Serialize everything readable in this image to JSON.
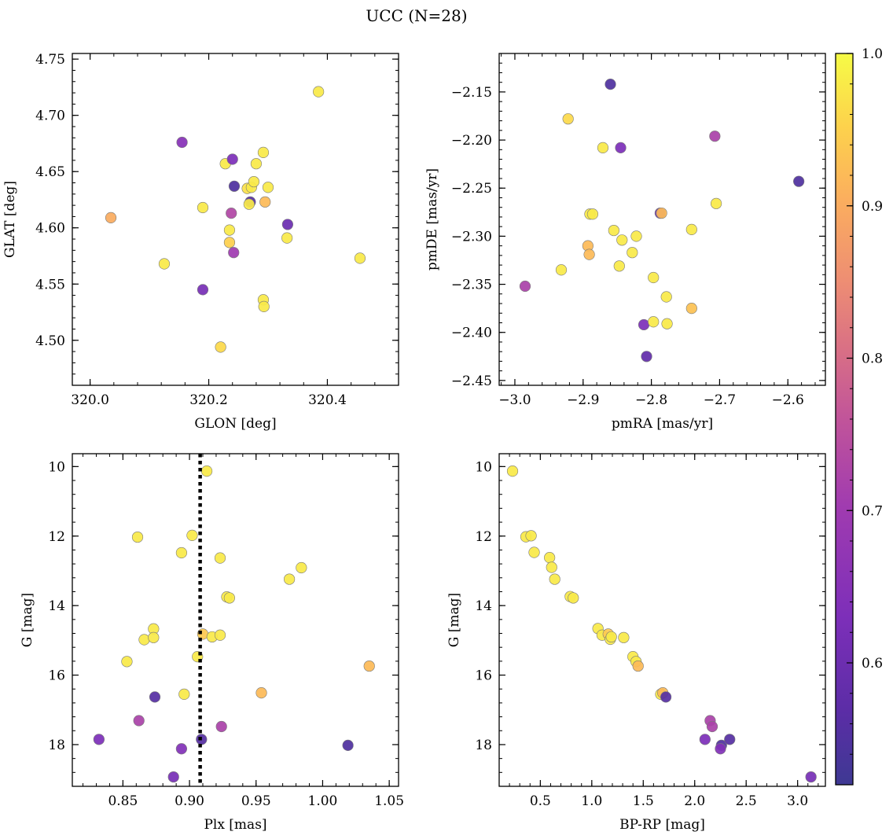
{
  "figure": {
    "title": "UCC (N=28)"
  },
  "colorbar": {
    "cmap": "plasma",
    "range": [
      0.52,
      1.0
    ],
    "ticks": [
      0.6,
      0.7,
      0.8,
      0.9,
      1.0
    ],
    "tick_labels": [
      "0.6",
      "0.7",
      "0.8",
      "0.9",
      "1.0"
    ]
  },
  "chart_data": [
    {
      "type": "scatter",
      "id": "glon-glat",
      "xlabel": "GLON [deg]",
      "ylabel": "GLAT [deg]",
      "xlim": [
        319.97,
        320.52
      ],
      "ylim": [
        4.46,
        4.755
      ],
      "xticks": [
        320.0,
        320.2,
        320.4
      ],
      "xtick_labels": [
        "320.0",
        "320.2",
        "320.4"
      ],
      "yticks": [
        4.5,
        4.55,
        4.6,
        4.65,
        4.7,
        4.75
      ],
      "ytick_labels": [
        "4.50",
        "4.55",
        "4.60",
        "4.65",
        "4.70",
        "4.75"
      ],
      "points": [
        {
          "x": 320.035,
          "y": 4.609,
          "c": 0.9
        },
        {
          "x": 320.125,
          "y": 4.568,
          "c": 0.98
        },
        {
          "x": 320.155,
          "y": 4.676,
          "c": 0.65
        },
        {
          "x": 320.19,
          "y": 4.545,
          "c": 0.62
        },
        {
          "x": 320.19,
          "y": 4.618,
          "c": 0.98
        },
        {
          "x": 320.22,
          "y": 4.494,
          "c": 0.96
        },
        {
          "x": 320.228,
          "y": 4.657,
          "c": 0.98
        },
        {
          "x": 320.235,
          "y": 4.598,
          "c": 0.98
        },
        {
          "x": 320.235,
          "y": 4.587,
          "c": 0.95
        },
        {
          "x": 320.238,
          "y": 4.613,
          "c": 0.73
        },
        {
          "x": 320.24,
          "y": 4.661,
          "c": 0.63
        },
        {
          "x": 320.242,
          "y": 4.578,
          "c": 0.7
        },
        {
          "x": 320.243,
          "y": 4.637,
          "c": 0.55
        },
        {
          "x": 320.265,
          "y": 4.635,
          "c": 0.97
        },
        {
          "x": 320.27,
          "y": 4.623,
          "c": 0.56
        },
        {
          "x": 320.268,
          "y": 4.621,
          "c": 0.98
        },
        {
          "x": 320.272,
          "y": 4.636,
          "c": 0.98
        },
        {
          "x": 320.276,
          "y": 4.641,
          "c": 0.98
        },
        {
          "x": 320.28,
          "y": 4.657,
          "c": 0.98
        },
        {
          "x": 320.292,
          "y": 4.667,
          "c": 0.98
        },
        {
          "x": 320.295,
          "y": 4.623,
          "c": 0.92
        },
        {
          "x": 320.3,
          "y": 4.636,
          "c": 0.98
        },
        {
          "x": 320.292,
          "y": 4.536,
          "c": 0.98
        },
        {
          "x": 320.293,
          "y": 4.53,
          "c": 0.98
        },
        {
          "x": 320.332,
          "y": 4.591,
          "c": 0.98
        },
        {
          "x": 320.333,
          "y": 4.603,
          "c": 0.6
        },
        {
          "x": 320.385,
          "y": 4.721,
          "c": 0.98
        },
        {
          "x": 320.455,
          "y": 4.573,
          "c": 0.98
        }
      ]
    },
    {
      "type": "scatter",
      "id": "pmra-pmde",
      "xlabel": "pmRA [mas/yr]",
      "ylabel": "pmDE [mas/yr]",
      "xlim": [
        -3.023,
        -2.545
      ],
      "ylim": [
        -2.455,
        -2.11
      ],
      "xticks": [
        -3.0,
        -2.9,
        -2.8,
        -2.7,
        -2.6
      ],
      "xtick_labels": [
        "−3.0",
        "−2.9",
        "−2.8",
        "−2.7",
        "−2.6"
      ],
      "yticks": [
        -2.45,
        -2.4,
        -2.35,
        -2.3,
        -2.25,
        -2.2,
        -2.15
      ],
      "ytick_labels": [
        "−2.45",
        "−2.40",
        "−2.35",
        "−2.30",
        "−2.25",
        "−2.20",
        "−2.15"
      ],
      "points": [
        {
          "x": -2.985,
          "y": -2.352,
          "c": 0.72
        },
        {
          "x": -2.932,
          "y": -2.335,
          "c": 0.98
        },
        {
          "x": -2.922,
          "y": -2.178,
          "c": 0.96
        },
        {
          "x": -2.893,
          "y": -2.31,
          "c": 0.92
        },
        {
          "x": -2.891,
          "y": -2.319,
          "c": 0.92
        },
        {
          "x": -2.89,
          "y": -2.277,
          "c": 0.98
        },
        {
          "x": -2.886,
          "y": -2.277,
          "c": 0.98
        },
        {
          "x": -2.871,
          "y": -2.208,
          "c": 0.98
        },
        {
          "x": -2.86,
          "y": -2.142,
          "c": 0.55
        },
        {
          "x": -2.855,
          "y": -2.294,
          "c": 0.98
        },
        {
          "x": -2.847,
          "y": -2.331,
          "c": 0.98
        },
        {
          "x": -2.845,
          "y": -2.208,
          "c": 0.63
        },
        {
          "x": -2.843,
          "y": -2.304,
          "c": 0.98
        },
        {
          "x": -2.828,
          "y": -2.317,
          "c": 0.98
        },
        {
          "x": -2.822,
          "y": -2.3,
          "c": 0.98
        },
        {
          "x": -2.811,
          "y": -2.392,
          "c": 0.63
        },
        {
          "x": -2.807,
          "y": -2.425,
          "c": 0.58
        },
        {
          "x": -2.797,
          "y": -2.389,
          "c": 0.98
        },
        {
          "x": -2.797,
          "y": -2.343,
          "c": 0.98
        },
        {
          "x": -2.787,
          "y": -2.276,
          "c": 0.6
        },
        {
          "x": -2.785,
          "y": -2.276,
          "c": 0.92
        },
        {
          "x": -2.778,
          "y": -2.363,
          "c": 0.98
        },
        {
          "x": -2.777,
          "y": -2.391,
          "c": 0.98
        },
        {
          "x": -2.741,
          "y": -2.375,
          "c": 0.93
        },
        {
          "x": -2.741,
          "y": -2.293,
          "c": 0.98
        },
        {
          "x": -2.707,
          "y": -2.196,
          "c": 0.72
        },
        {
          "x": -2.705,
          "y": -2.266,
          "c": 0.98
        },
        {
          "x": -2.584,
          "y": -2.243,
          "c": 0.55
        }
      ]
    },
    {
      "type": "scatter",
      "id": "plx-g",
      "xlabel": "Plx [mas]",
      "ylabel": "G [mag]",
      "xlim": [
        0.812,
        1.057
      ],
      "ylim": [
        19.2,
        9.63
      ],
      "y_inverted": true,
      "vline": 0.908,
      "xticks": [
        0.85,
        0.9,
        0.95,
        1.0,
        1.05
      ],
      "xtick_labels": [
        "0.85",
        "0.90",
        "0.95",
        "1.00",
        "1.05"
      ],
      "yticks": [
        10,
        12,
        14,
        16,
        18
      ],
      "ytick_labels": [
        "10",
        "12",
        "14",
        "16",
        "18"
      ],
      "points": [
        {
          "x": 0.913,
          "y": 10.13,
          "c": 0.98
        },
        {
          "x": 0.861,
          "y": 12.03,
          "c": 0.98
        },
        {
          "x": 0.902,
          "y": 11.98,
          "c": 0.98
        },
        {
          "x": 0.894,
          "y": 12.48,
          "c": 0.98
        },
        {
          "x": 0.923,
          "y": 12.63,
          "c": 0.98
        },
        {
          "x": 0.984,
          "y": 12.91,
          "c": 0.98
        },
        {
          "x": 0.975,
          "y": 13.24,
          "c": 0.98
        },
        {
          "x": 0.928,
          "y": 13.75,
          "c": 0.98
        },
        {
          "x": 0.93,
          "y": 13.78,
          "c": 0.98
        },
        {
          "x": 0.873,
          "y": 14.67,
          "c": 0.98
        },
        {
          "x": 0.866,
          "y": 14.98,
          "c": 0.98
        },
        {
          "x": 0.873,
          "y": 14.92,
          "c": 0.98
        },
        {
          "x": 0.91,
          "y": 14.82,
          "c": 0.94
        },
        {
          "x": 0.917,
          "y": 14.9,
          "c": 0.98
        },
        {
          "x": 0.923,
          "y": 14.85,
          "c": 0.98
        },
        {
          "x": 0.906,
          "y": 15.47,
          "c": 0.98
        },
        {
          "x": 0.853,
          "y": 15.61,
          "c": 0.98
        },
        {
          "x": 1.035,
          "y": 15.74,
          "c": 0.92
        },
        {
          "x": 0.954,
          "y": 16.51,
          "c": 0.92
        },
        {
          "x": 0.896,
          "y": 16.55,
          "c": 0.98
        },
        {
          "x": 0.874,
          "y": 16.63,
          "c": 0.56
        },
        {
          "x": 0.862,
          "y": 17.31,
          "c": 0.72
        },
        {
          "x": 0.924,
          "y": 17.48,
          "c": 0.72
        },
        {
          "x": 0.832,
          "y": 17.85,
          "c": 0.63
        },
        {
          "x": 0.909,
          "y": 17.85,
          "c": 0.56
        },
        {
          "x": 0.894,
          "y": 18.12,
          "c": 0.64
        },
        {
          "x": 1.019,
          "y": 18.02,
          "c": 0.55
        },
        {
          "x": 0.888,
          "y": 18.93,
          "c": 0.62
        }
      ]
    },
    {
      "type": "scatter",
      "id": "bprp-g",
      "xlabel": "BP-RP [mag]",
      "ylabel": "G [mag]",
      "xlim": [
        0.1,
        3.27
      ],
      "ylim": [
        19.2,
        9.63
      ],
      "y_inverted": true,
      "xticks": [
        0.5,
        1.0,
        1.5,
        2.0,
        2.5,
        3.0
      ],
      "xtick_labels": [
        "0.5",
        "1.0",
        "1.5",
        "2.0",
        "2.5",
        "3.0"
      ],
      "yticks": [
        10,
        12,
        14,
        16,
        18
      ],
      "ytick_labels": [
        "10",
        "12",
        "14",
        "16",
        "18"
      ],
      "points": [
        {
          "x": 0.23,
          "y": 10.13,
          "c": 0.98
        },
        {
          "x": 0.36,
          "y": 12.02,
          "c": 0.98
        },
        {
          "x": 0.41,
          "y": 11.99,
          "c": 0.98
        },
        {
          "x": 0.44,
          "y": 12.47,
          "c": 0.98
        },
        {
          "x": 0.59,
          "y": 12.62,
          "c": 0.98
        },
        {
          "x": 0.61,
          "y": 12.9,
          "c": 0.98
        },
        {
          "x": 0.64,
          "y": 13.24,
          "c": 0.98
        },
        {
          "x": 0.79,
          "y": 13.74,
          "c": 0.98
        },
        {
          "x": 0.82,
          "y": 13.78,
          "c": 0.98
        },
        {
          "x": 1.06,
          "y": 14.66,
          "c": 0.98
        },
        {
          "x": 1.1,
          "y": 14.85,
          "c": 0.98
        },
        {
          "x": 1.16,
          "y": 14.82,
          "c": 0.94
        },
        {
          "x": 1.18,
          "y": 14.97,
          "c": 0.98
        },
        {
          "x": 1.19,
          "y": 14.9,
          "c": 0.98
        },
        {
          "x": 1.31,
          "y": 14.92,
          "c": 0.98
        },
        {
          "x": 1.4,
          "y": 15.47,
          "c": 0.98
        },
        {
          "x": 1.43,
          "y": 15.61,
          "c": 0.98
        },
        {
          "x": 1.45,
          "y": 15.74,
          "c": 0.92
        },
        {
          "x": 1.67,
          "y": 16.55,
          "c": 0.98
        },
        {
          "x": 1.69,
          "y": 16.51,
          "c": 0.92
        },
        {
          "x": 1.72,
          "y": 16.63,
          "c": 0.56
        },
        {
          "x": 2.15,
          "y": 17.31,
          "c": 0.72
        },
        {
          "x": 2.17,
          "y": 17.48,
          "c": 0.72
        },
        {
          "x": 2.1,
          "y": 17.85,
          "c": 0.63
        },
        {
          "x": 2.26,
          "y": 18.02,
          "c": 0.55
        },
        {
          "x": 2.25,
          "y": 18.12,
          "c": 0.64
        },
        {
          "x": 2.34,
          "y": 17.85,
          "c": 0.56
        },
        {
          "x": 3.13,
          "y": 18.93,
          "c": 0.62
        }
      ]
    }
  ]
}
